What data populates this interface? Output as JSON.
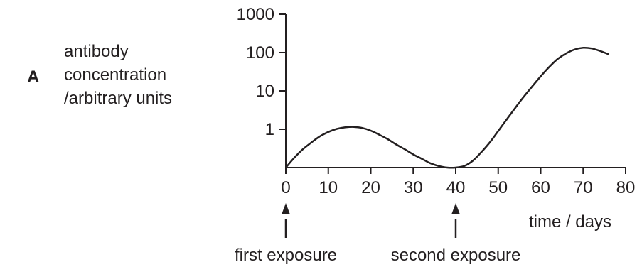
{
  "panel_letter": "A",
  "chart_data": {
    "type": "line",
    "title": "",
    "ylabel_lines": [
      "antibody",
      "concentration",
      "/arbitrary units"
    ],
    "xlabel": "time / days",
    "y_scale": "log",
    "x_ticks": [
      "0",
      "10",
      "20",
      "30",
      "40",
      "50",
      "60",
      "70",
      "80"
    ],
    "y_ticks": [
      "1",
      "10",
      "100",
      "1000"
    ],
    "xlim": [
      0,
      80
    ],
    "ylim_log10": [
      -1,
      3
    ],
    "grid": false,
    "series": [
      {
        "x": [
          0,
          2,
          4,
          6,
          8,
          10,
          12,
          14,
          16,
          18,
          20,
          22,
          24,
          26,
          28,
          30,
          32,
          34,
          36,
          38,
          40,
          42,
          44,
          46,
          48,
          50,
          52,
          54,
          56,
          58,
          60,
          62,
          64,
          66,
          68,
          70,
          72,
          74,
          76
        ],
        "y": [
          0.1,
          0.18,
          0.3,
          0.45,
          0.65,
          0.85,
          1.02,
          1.12,
          1.15,
          1.08,
          0.92,
          0.72,
          0.55,
          0.4,
          0.3,
          0.22,
          0.17,
          0.13,
          0.11,
          0.1,
          0.1,
          0.11,
          0.15,
          0.25,
          0.45,
          0.9,
          1.8,
          3.6,
          7,
          13,
          24,
          42,
          68,
          95,
          120,
          133,
          128,
          110,
          90
        ]
      }
    ],
    "annotations": [
      {
        "x": 0,
        "text": "first exposure"
      },
      {
        "x": 40,
        "text": "second exposure"
      }
    ]
  }
}
